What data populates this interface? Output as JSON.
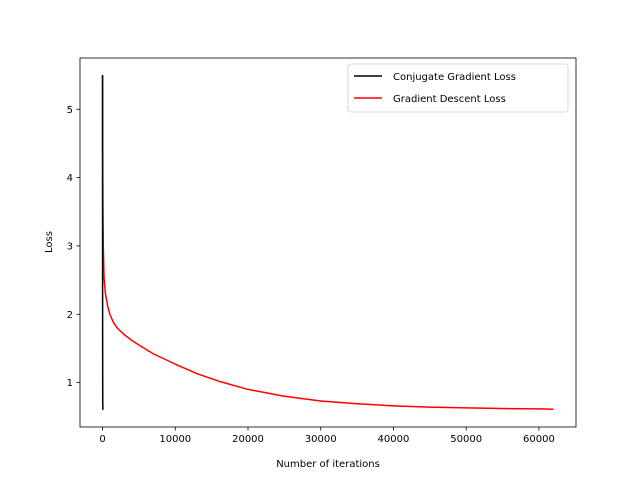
{
  "chart_data": {
    "type": "line",
    "title": "",
    "xlabel": "Number of iterations",
    "ylabel": "Loss",
    "xlim": [
      -3100,
      65100
    ],
    "ylim": [
      0.35,
      5.75
    ],
    "xticks": [
      0,
      10000,
      20000,
      30000,
      40000,
      50000,
      60000
    ],
    "xtick_labels": [
      "0",
      "10000",
      "20000",
      "30000",
      "40000",
      "50000",
      "60000"
    ],
    "yticks": [
      1,
      2,
      3,
      4,
      5
    ],
    "ytick_labels": [
      "1",
      "2",
      "3",
      "4",
      "5"
    ],
    "grid": false,
    "legend_position": "top-right",
    "series": [
      {
        "name": "Conjugate Gradient Loss",
        "color": "#000000",
        "x": [
          0,
          5,
          10,
          20,
          30,
          50
        ],
        "y": [
          5.5,
          3.2,
          1.9,
          1.05,
          0.7,
          0.6
        ]
      },
      {
        "name": "Gradient Descent Loss",
        "color": "#ff0000",
        "x": [
          0,
          20,
          50,
          100,
          200,
          400,
          700,
          1000,
          1500,
          2000,
          3000,
          4000,
          5000,
          7000,
          10000,
          13000,
          16000,
          20000,
          25000,
          30000,
          35000,
          40000,
          45000,
          50000,
          55000,
          60000,
          62000
        ],
        "y": [
          5.5,
          4.3,
          3.6,
          3.0,
          2.55,
          2.3,
          2.12,
          2.0,
          1.88,
          1.8,
          1.7,
          1.62,
          1.55,
          1.42,
          1.27,
          1.13,
          1.02,
          0.9,
          0.8,
          0.73,
          0.69,
          0.66,
          0.64,
          0.63,
          0.62,
          0.615,
          0.61
        ]
      }
    ]
  }
}
